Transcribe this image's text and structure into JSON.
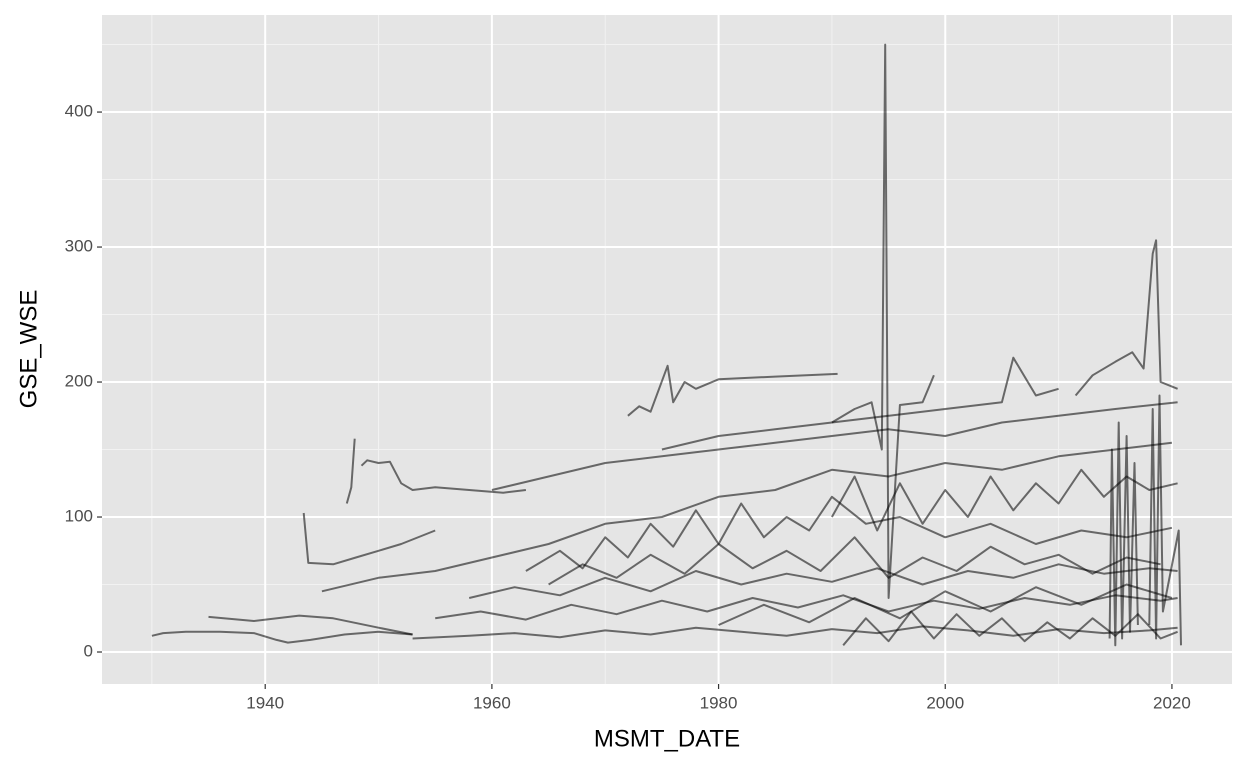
{
  "chart_data": {
    "type": "line",
    "x_label": "MSMT_DATE",
    "y_label": "GSE_WSE",
    "xlim": [
      1925.6,
      2025.3
    ],
    "ylim": [
      -23.7,
      471.9
    ],
    "xticks": [
      1940,
      1960,
      1980,
      2000,
      2020
    ],
    "yticks": [
      0,
      100,
      200,
      300,
      400
    ],
    "grid": true,
    "background": "#e5e5e5",
    "line_color": "#000000",
    "line_alpha": 0.55,
    "series": [
      {
        "x": [
          1930,
          1931,
          1933,
          1936,
          1939,
          1941,
          1942,
          1944,
          1947,
          1950,
          1953
        ],
        "values": [
          12,
          14,
          15,
          15,
          14,
          9,
          7,
          9,
          13,
          15,
          13
        ]
      },
      {
        "x": [
          1935,
          1939,
          1943,
          1946,
          1950,
          1953
        ],
        "values": [
          26,
          23,
          27,
          25,
          18,
          13
        ]
      },
      {
        "x": [
          1943.4,
          1943.8,
          1946,
          1948,
          1950,
          1952,
          1955
        ],
        "values": [
          103,
          66,
          65,
          70,
          75,
          80,
          90
        ]
      },
      {
        "x": [
          1947.2,
          1947.6,
          1947.9
        ],
        "values": [
          110,
          122,
          158
        ]
      },
      {
        "x": [
          1948.5,
          1949,
          1950,
          1951,
          1952,
          1953,
          1955,
          1958,
          1961,
          1963
        ],
        "values": [
          138,
          142,
          140,
          141,
          125,
          120,
          122,
          120,
          118,
          120
        ]
      },
      {
        "x": [
          1972,
          1973,
          1974,
          1975.5,
          1976,
          1977,
          1978,
          1980,
          1985,
          1990.5
        ],
        "values": [
          175,
          182,
          178,
          212,
          185,
          200,
          195,
          202,
          204,
          206
        ]
      },
      {
        "x": [
          1990,
          1992,
          1993.5,
          1994.4,
          1994.7,
          1995,
          1996,
          1998,
          1999
        ],
        "values": [
          170,
          180,
          185,
          150,
          450,
          40,
          183,
          185,
          205
        ]
      },
      {
        "x": [
          2011.5,
          2013,
          2015,
          2016.5,
          2017.5,
          2018.3,
          2018.6,
          2019,
          2020.5
        ],
        "values": [
          190,
          205,
          215,
          222,
          210,
          295,
          305,
          200,
          195
        ]
      },
      {
        "x": [
          1953,
          1958,
          1962,
          1966,
          1970,
          1974,
          1978,
          1982,
          1986,
          1990,
          1994,
          1998,
          2002,
          2006,
          2010,
          2014,
          2018,
          2020.5
        ],
        "values": [
          10,
          12,
          14,
          11,
          16,
          13,
          18,
          15,
          12,
          17,
          14,
          19,
          16,
          12,
          17,
          14,
          16,
          18
        ]
      },
      {
        "x": [
          1955,
          1959,
          1963,
          1967,
          1971,
          1975,
          1979,
          1983,
          1987,
          1991,
          1995,
          1999,
          2003,
          2007,
          2011,
          2015,
          2019,
          2020.5
        ],
        "values": [
          25,
          30,
          24,
          35,
          28,
          38,
          30,
          40,
          33,
          42,
          30,
          38,
          32,
          40,
          35,
          42,
          38,
          40
        ]
      },
      {
        "x": [
          1963,
          1966,
          1968,
          1970,
          1972,
          1974,
          1976,
          1978,
          1980,
          1982,
          1984,
          1986,
          1988,
          1990,
          1993,
          1996,
          2000,
          2004,
          2008,
          2012,
          2016,
          2020
        ],
        "values": [
          60,
          75,
          62,
          85,
          70,
          95,
          78,
          105,
          80,
          110,
          85,
          100,
          90,
          115,
          95,
          100,
          85,
          95,
          80,
          90,
          85,
          92
        ]
      },
      {
        "x": [
          1945,
          1950,
          1955,
          1960,
          1965,
          1970,
          1975,
          1980,
          1985,
          1990,
          1995,
          2000,
          2005,
          2010,
          2015,
          2020
        ],
        "values": [
          45,
          55,
          60,
          70,
          80,
          95,
          100,
          115,
          120,
          135,
          130,
          140,
          135,
          145,
          150,
          155
        ]
      },
      {
        "x": [
          1960,
          1965,
          1970,
          1975,
          1980,
          1985,
          1990,
          1995,
          2000,
          2005,
          2010,
          2015,
          2020.5
        ],
        "values": [
          120,
          130,
          140,
          145,
          150,
          155,
          160,
          165,
          160,
          170,
          175,
          180,
          185
        ]
      },
      {
        "x": [
          1965,
          1968,
          1971,
          1974,
          1977,
          1980,
          1983,
          1986,
          1989,
          1992,
          1995,
          1998,
          2001,
          2004,
          2007,
          2010,
          2013,
          2016,
          2019
        ],
        "values": [
          50,
          65,
          55,
          72,
          58,
          80,
          62,
          75,
          60,
          85,
          55,
          70,
          60,
          78,
          65,
          72,
          58,
          70,
          65
        ]
      },
      {
        "x": [
          1958,
          1962,
          1966,
          1970,
          1974,
          1978,
          1982,
          1986,
          1990,
          1994,
          1998,
          2002,
          2006,
          2010,
          2014,
          2018,
          2020.5
        ],
        "values": [
          40,
          48,
          42,
          55,
          45,
          60,
          50,
          58,
          52,
          62,
          50,
          60,
          55,
          65,
          58,
          62,
          60
        ]
      },
      {
        "x": [
          1990,
          1992,
          1994,
          1996,
          1998,
          2000,
          2002,
          2004,
          2006,
          2008,
          2010,
          2012,
          2014,
          2016,
          2018,
          2020.5
        ],
        "values": [
          100,
          130,
          90,
          125,
          95,
          120,
          100,
          130,
          105,
          125,
          110,
          135,
          115,
          130,
          120,
          125
        ]
      },
      {
        "x": [
          1991,
          1993,
          1995,
          1997,
          1999,
          2001,
          2003,
          2005,
          2007,
          2009,
          2011,
          2013,
          2015,
          2017,
          2019,
          2020.5
        ],
        "values": [
          5,
          25,
          8,
          30,
          10,
          28,
          12,
          25,
          8,
          22,
          10,
          25,
          12,
          28,
          10,
          15
        ]
      },
      {
        "x": [
          2014.5,
          2014.7,
          2015,
          2015.3,
          2015.6,
          2016,
          2016.3,
          2016.7,
          2017
        ],
        "values": [
          10,
          150,
          5,
          170,
          10,
          160,
          15,
          140,
          20
        ]
      },
      {
        "x": [
          2018,
          2018.3,
          2018.6,
          2018.9,
          2019.2,
          2020.6,
          2020.8
        ],
        "values": [
          20,
          180,
          10,
          190,
          30,
          90,
          5
        ]
      },
      {
        "x": [
          1975,
          1980,
          1985,
          1990,
          1995,
          2000,
          2005,
          2006,
          2008,
          2010
        ],
        "values": [
          150,
          160,
          165,
          170,
          175,
          180,
          185,
          218,
          190,
          195
        ]
      },
      {
        "x": [
          1980,
          1984,
          1988,
          1992,
          1996,
          2000,
          2004,
          2008,
          2012,
          2016,
          2020
        ],
        "values": [
          20,
          35,
          22,
          40,
          25,
          45,
          30,
          48,
          35,
          50,
          40
        ]
      }
    ]
  }
}
